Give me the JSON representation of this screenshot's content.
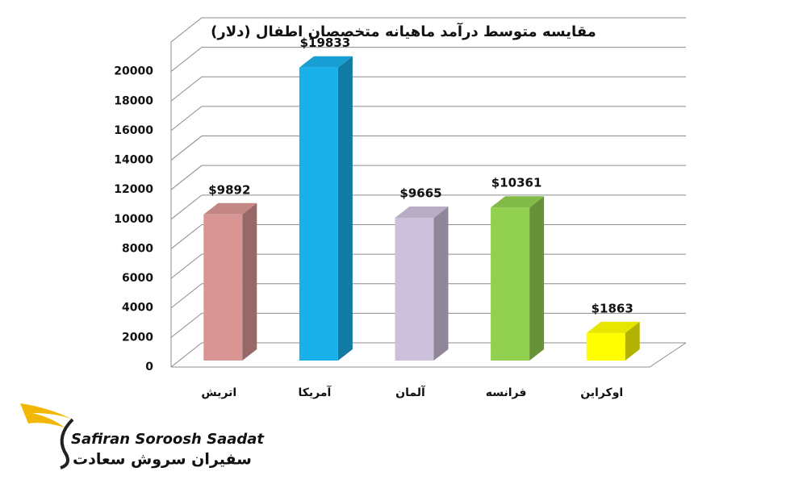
{
  "chart_data": {
    "type": "bar3d",
    "title": "مقایسه متوسط درآمد ماهیانه متخصصان اطفال (دلار)",
    "categories": [
      "اتریش",
      "آمریکا",
      "آلمان",
      "فرانسه",
      "اوکراین"
    ],
    "values": [
      9892,
      19833,
      9665,
      10361,
      1863
    ],
    "value_labels": [
      "$9892",
      "$19833",
      "$9665",
      "$10361",
      "$1863"
    ],
    "colors": [
      "#d99594",
      "#1ab0ea",
      "#ccc0da",
      "#92d050",
      "#ffff00"
    ],
    "ylim": [
      0,
      22000
    ],
    "yticks": [
      0,
      2000,
      4000,
      6000,
      8000,
      10000,
      12000,
      14000,
      16000,
      18000,
      20000
    ],
    "grid": true
  },
  "logo": {
    "latin": "Safiran Soroosh Saadat",
    "persian": "سفیران سروش سعادت"
  }
}
